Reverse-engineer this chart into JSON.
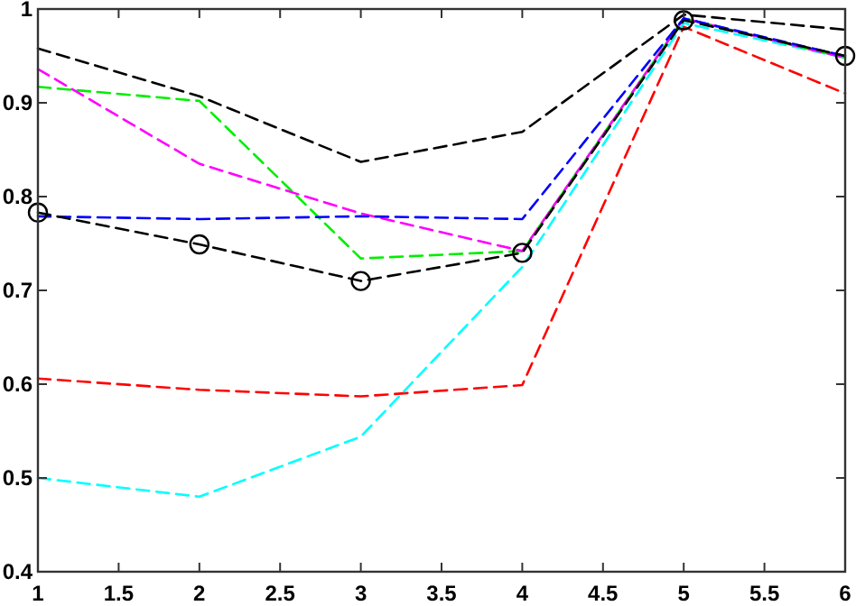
{
  "chart_data": {
    "type": "line",
    "x": [
      1,
      2,
      3,
      4,
      5,
      6
    ],
    "series": [
      {
        "color": "#ff0000",
        "values": [
          0.606,
          0.594,
          0.587,
          0.599,
          0.981,
          0.91
        ]
      },
      {
        "color": "#00ffff",
        "values": [
          0.5,
          0.48,
          0.544,
          0.725,
          0.985,
          0.948
        ]
      },
      {
        "color": "#00ee00",
        "values": [
          0.917,
          0.902,
          0.734,
          0.742,
          0.99,
          0.948
        ]
      },
      {
        "color": "#ff00ff",
        "values": [
          0.936,
          0.835,
          0.782,
          0.742,
          0.99,
          0.948
        ]
      },
      {
        "color": "#0000ff",
        "values": [
          0.779,
          0.776,
          0.779,
          0.776,
          0.99,
          0.95
        ]
      },
      {
        "color": "#000000",
        "values": [
          0.958,
          0.907,
          0.837,
          0.869,
          0.994,
          0.978
        ]
      },
      {
        "color": "#000000",
        "marker": "circle",
        "values": [
          0.783,
          0.749,
          0.71,
          0.74,
          0.988,
          0.95
        ]
      }
    ],
    "xlim": [
      1,
      6
    ],
    "ylim": [
      0.4,
      1
    ],
    "xticks": [
      1,
      1.5,
      2,
      2.5,
      3,
      3.5,
      4,
      4.5,
      5,
      5.5,
      6
    ],
    "yticks": [
      0.4,
      0.5,
      0.6,
      0.7,
      0.8,
      0.9,
      1
    ],
    "line_style": "dashed"
  }
}
